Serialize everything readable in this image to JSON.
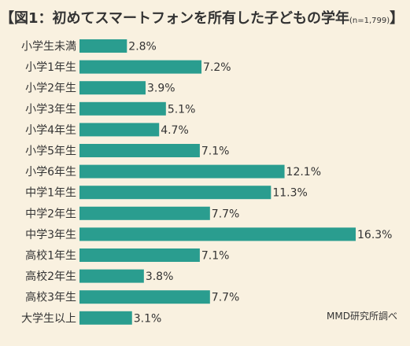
{
  "chart_data": {
    "type": "bar",
    "orientation": "horizontal",
    "title": "図1：初めてスマートフォンを所有した子どもの学年",
    "note": "(n=1,799)",
    "categories": [
      "小学生未満",
      "小学1年生",
      "小学2年生",
      "小学3年生",
      "小学4年生",
      "小学5年生",
      "小学6年生",
      "中学1年生",
      "中学2年生",
      "中学3年生",
      "高校1年生",
      "高校2年生",
      "高校3年生",
      "大学生以上"
    ],
    "values": [
      2.8,
      7.2,
      3.9,
      5.1,
      4.7,
      7.1,
      12.1,
      11.3,
      7.7,
      16.3,
      7.1,
      3.8,
      7.7,
      3.1
    ],
    "value_labels": [
      "2.8%",
      "7.2%",
      "3.9%",
      "5.1%",
      "4.7%",
      "7.1%",
      "12.1%",
      "11.3%",
      "7.7%",
      "16.3%",
      "7.1%",
      "3.8%",
      "7.7%",
      "3.1%"
    ],
    "unit": "%",
    "xlim": [
      0,
      16.3
    ],
    "grid": false,
    "legend": "none",
    "source": "MMD研究所調べ"
  },
  "colors": {
    "bar": "#2a9d8f",
    "background": "#f9f1e0",
    "text": "#333333"
  }
}
